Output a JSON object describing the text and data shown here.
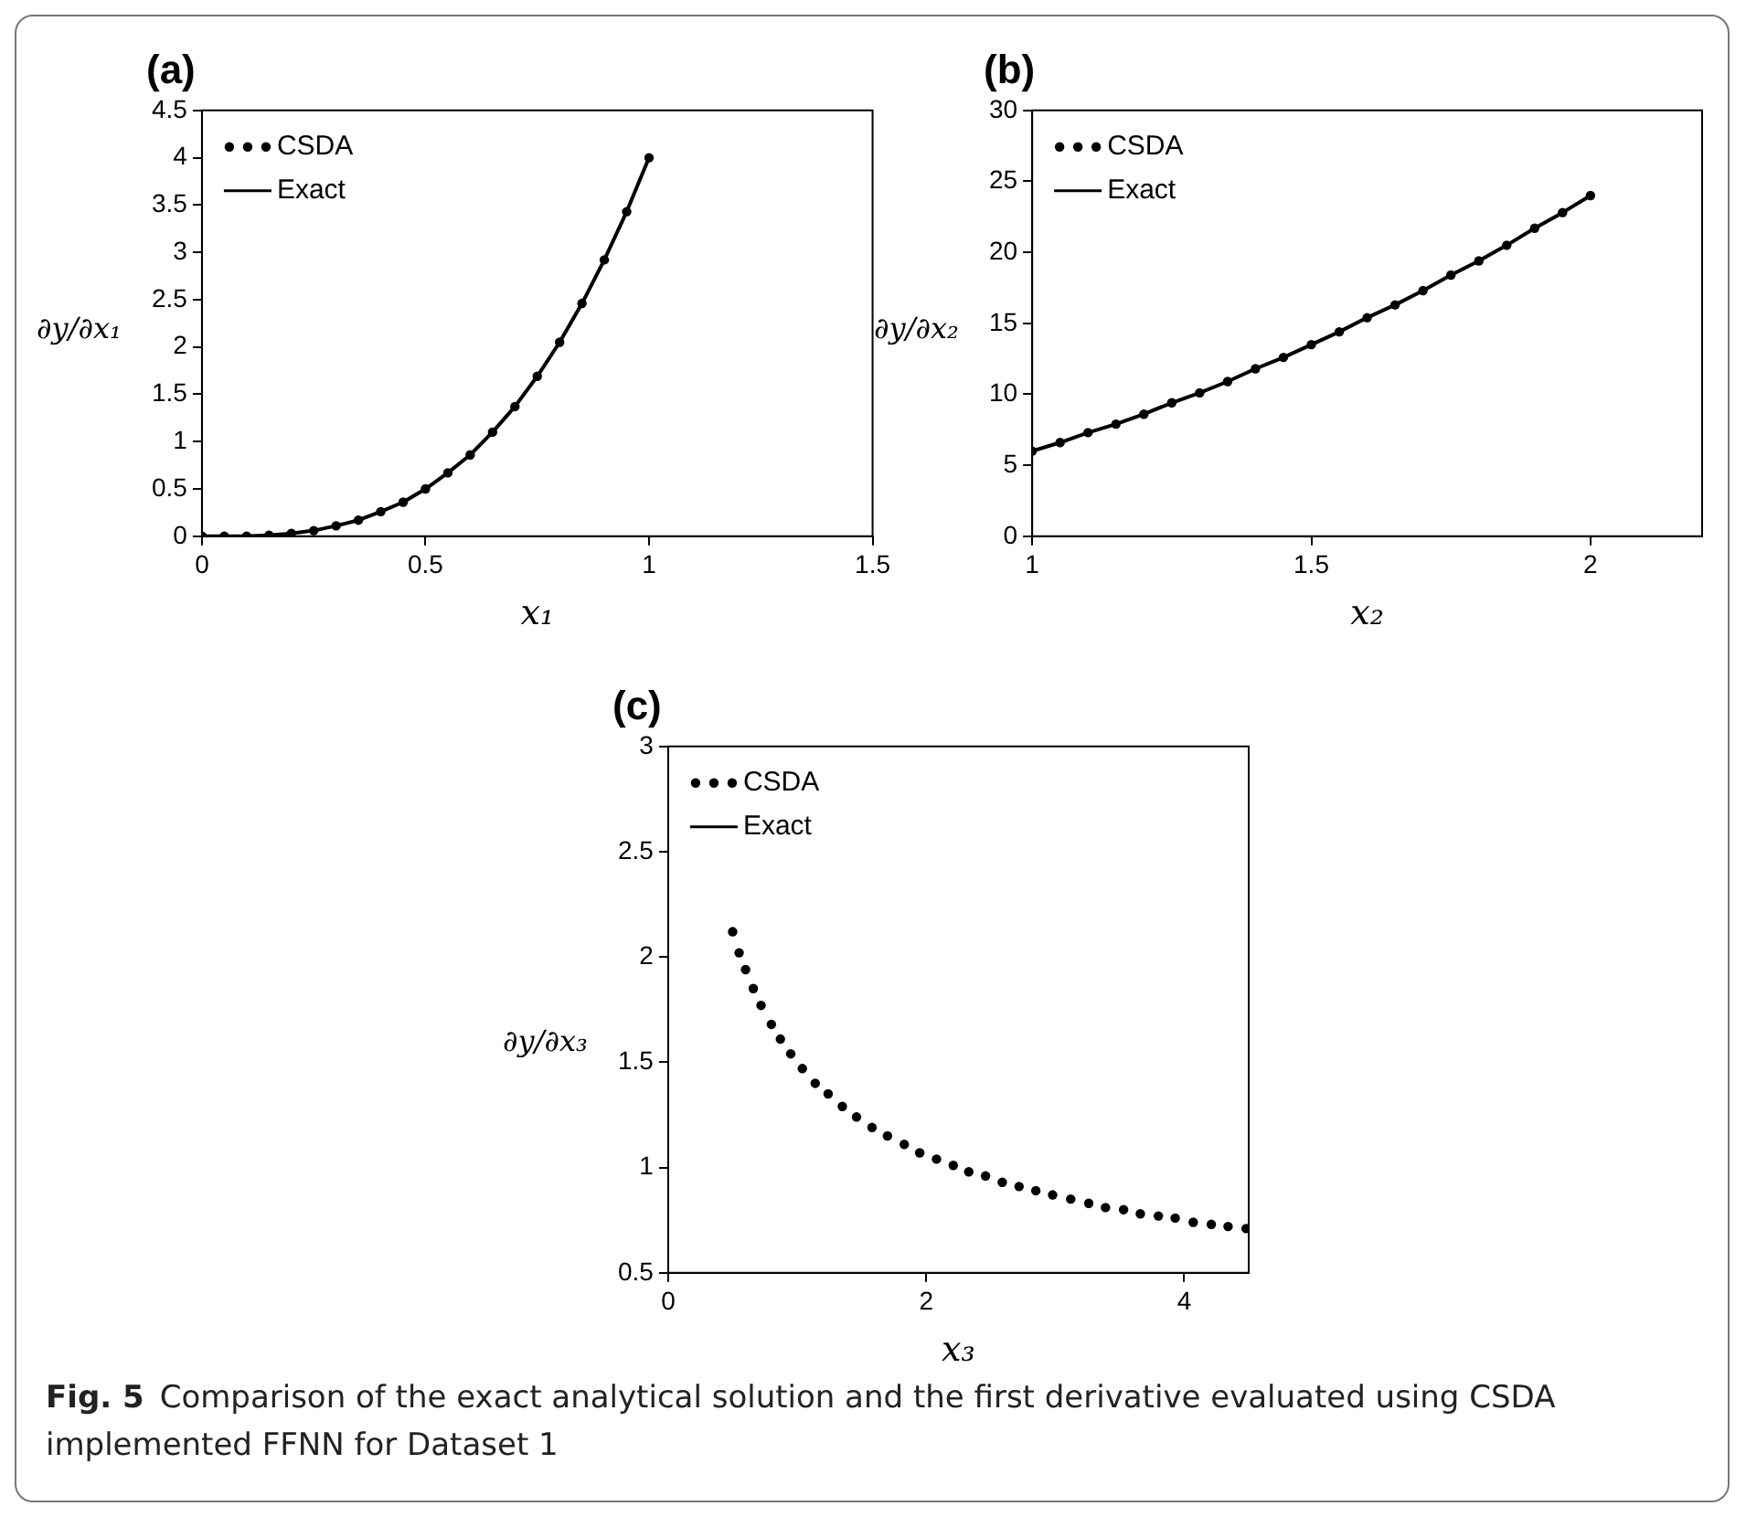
{
  "chart_data": [
    {
      "type": "line",
      "title": "(a)",
      "xlabel": "x₁",
      "ylabel": "∂y/∂x₁",
      "xlim": [
        0,
        1.5
      ],
      "xticks": [
        0,
        0.5,
        1,
        1.5
      ],
      "ylim": [
        0,
        4.5
      ],
      "yticks": [
        0,
        0.5,
        1,
        1.5,
        2,
        2.5,
        3,
        3.5,
        4,
        4.5
      ],
      "grid": false,
      "legend": "top left",
      "x": [
        0,
        0.05,
        0.1,
        0.15,
        0.2,
        0.25,
        0.3,
        0.35,
        0.4,
        0.45,
        0.5,
        0.55,
        0.6,
        0.65,
        0.7,
        0.75,
        0.8,
        0.85,
        0.9,
        0.95,
        1
      ],
      "series": [
        {
          "name": "CSDA",
          "type": "scatter",
          "marker": "circle",
          "color": "#000000",
          "values": [
            0,
            0,
            0,
            0.01,
            0.03,
            0.06,
            0.11,
            0.17,
            0.26,
            0.36,
            0.5,
            0.67,
            0.86,
            1.1,
            1.37,
            1.69,
            2.05,
            2.46,
            2.92,
            3.43,
            4
          ]
        },
        {
          "name": "Exact",
          "type": "line",
          "marker": "none",
          "color": "#000000",
          "values": [
            0,
            0,
            0,
            0.01,
            0.03,
            0.06,
            0.11,
            0.17,
            0.26,
            0.36,
            0.5,
            0.67,
            0.86,
            1.1,
            1.37,
            1.69,
            2.05,
            2.46,
            2.92,
            3.43,
            4
          ]
        }
      ]
    },
    {
      "type": "line",
      "title": "(b)",
      "xlabel": "x₂",
      "ylabel": "∂y/∂x₂",
      "xlim": [
        1,
        2.2
      ],
      "xticks": [
        1,
        1.5,
        2
      ],
      "ylim": [
        0,
        30
      ],
      "yticks": [
        0,
        5,
        10,
        15,
        20,
        25,
        30
      ],
      "grid": false,
      "legend": "top left",
      "x": [
        1,
        1.05,
        1.1,
        1.15,
        1.2,
        1.25,
        1.3,
        1.35,
        1.4,
        1.45,
        1.5,
        1.55,
        1.6,
        1.65,
        1.7,
        1.75,
        1.8,
        1.85,
        1.9,
        1.95,
        2
      ],
      "series": [
        {
          "name": "CSDA",
          "type": "scatter",
          "marker": "circle",
          "color": "#000000",
          "values": [
            6,
            6.6,
            7.3,
            7.9,
            8.6,
            9.4,
            10.1,
            10.9,
            11.8,
            12.6,
            13.5,
            14.4,
            15.4,
            16.3,
            17.3,
            18.4,
            19.4,
            20.5,
            21.7,
            22.8,
            24
          ]
        },
        {
          "name": "Exact",
          "type": "line",
          "marker": "none",
          "color": "#000000",
          "values": [
            6,
            6.6,
            7.3,
            7.9,
            8.6,
            9.4,
            10.1,
            10.9,
            11.8,
            12.6,
            13.5,
            14.4,
            15.4,
            16.3,
            17.3,
            18.4,
            19.4,
            20.5,
            21.7,
            22.8,
            24
          ]
        }
      ]
    },
    {
      "type": "line",
      "title": "(c)",
      "xlabel": "x₃",
      "ylabel": "∂y/∂x₃",
      "xlim": [
        0,
        4.5
      ],
      "xticks": [
        0,
        2,
        4
      ],
      "ylim": [
        0.5,
        3
      ],
      "yticks": [
        0.5,
        1,
        1.5,
        2,
        2.5,
        3
      ],
      "grid": false,
      "legend": "top left",
      "annotations": [
        "Fig. 5",
        "Comparison of the exact analytical solution and the first derivative evaluated using CSDA implemented FFNN for Dataset 1"
      ],
      "series": [
        {
          "name": "CSDA",
          "type": "scatter",
          "marker": "circle",
          "color": "#000000",
          "x": [
            0.5,
            0.55,
            0.6,
            0.66,
            0.72,
            0.8,
            0.87,
            0.95,
            1.04,
            1.14,
            1.24,
            1.35,
            1.46,
            1.58,
            1.7,
            1.83,
            1.95,
            2.08,
            2.21,
            2.33,
            2.46,
            2.59,
            2.72,
            2.85,
            2.98,
            3.12,
            3.26,
            3.39,
            3.53,
            3.66,
            3.8,
            3.93,
            4.07,
            4.21,
            4.34,
            4.48
          ],
          "values": [
            2.12,
            2.02,
            1.94,
            1.85,
            1.77,
            1.68,
            1.61,
            1.54,
            1.47,
            1.4,
            1.35,
            1.29,
            1.24,
            1.19,
            1.15,
            1.11,
            1.07,
            1.04,
            1.01,
            0.98,
            0.96,
            0.93,
            0.91,
            0.89,
            0.87,
            0.85,
            0.83,
            0.81,
            0.8,
            0.78,
            0.77,
            0.76,
            0.74,
            0.73,
            0.72,
            0.71
          ]
        },
        {
          "name": "Exact",
          "type": "line",
          "marker": "none",
          "color": "#000000"
        }
      ]
    }
  ]
}
